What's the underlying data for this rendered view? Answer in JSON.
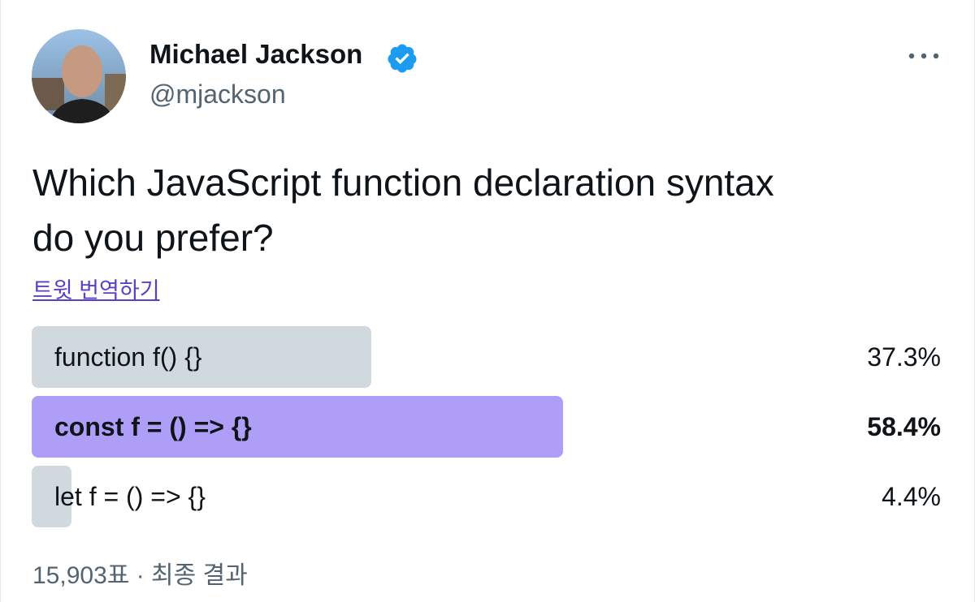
{
  "tweet": {
    "author": {
      "name": "Michael Jackson",
      "handle": "@mjackson"
    },
    "text_lines": [
      "Which JavaScript function declaration syntax",
      "do you prefer?"
    ],
    "translate_link": "트윗 번역하기",
    "poll": {
      "options": [
        "function f() {}",
        "const f = () => {}",
        "let f = () => {}"
      ],
      "percents": [
        37.3,
        58.4,
        4.4
      ],
      "percent_labels": [
        "37.3%",
        "58.4%",
        "4.4%"
      ],
      "colors": [
        "#cfd9de",
        "#ae9ef8",
        "#cfd9de"
      ],
      "bold": [
        false,
        true,
        false
      ],
      "summary": "15,903표 · 최종 결과"
    }
  }
}
